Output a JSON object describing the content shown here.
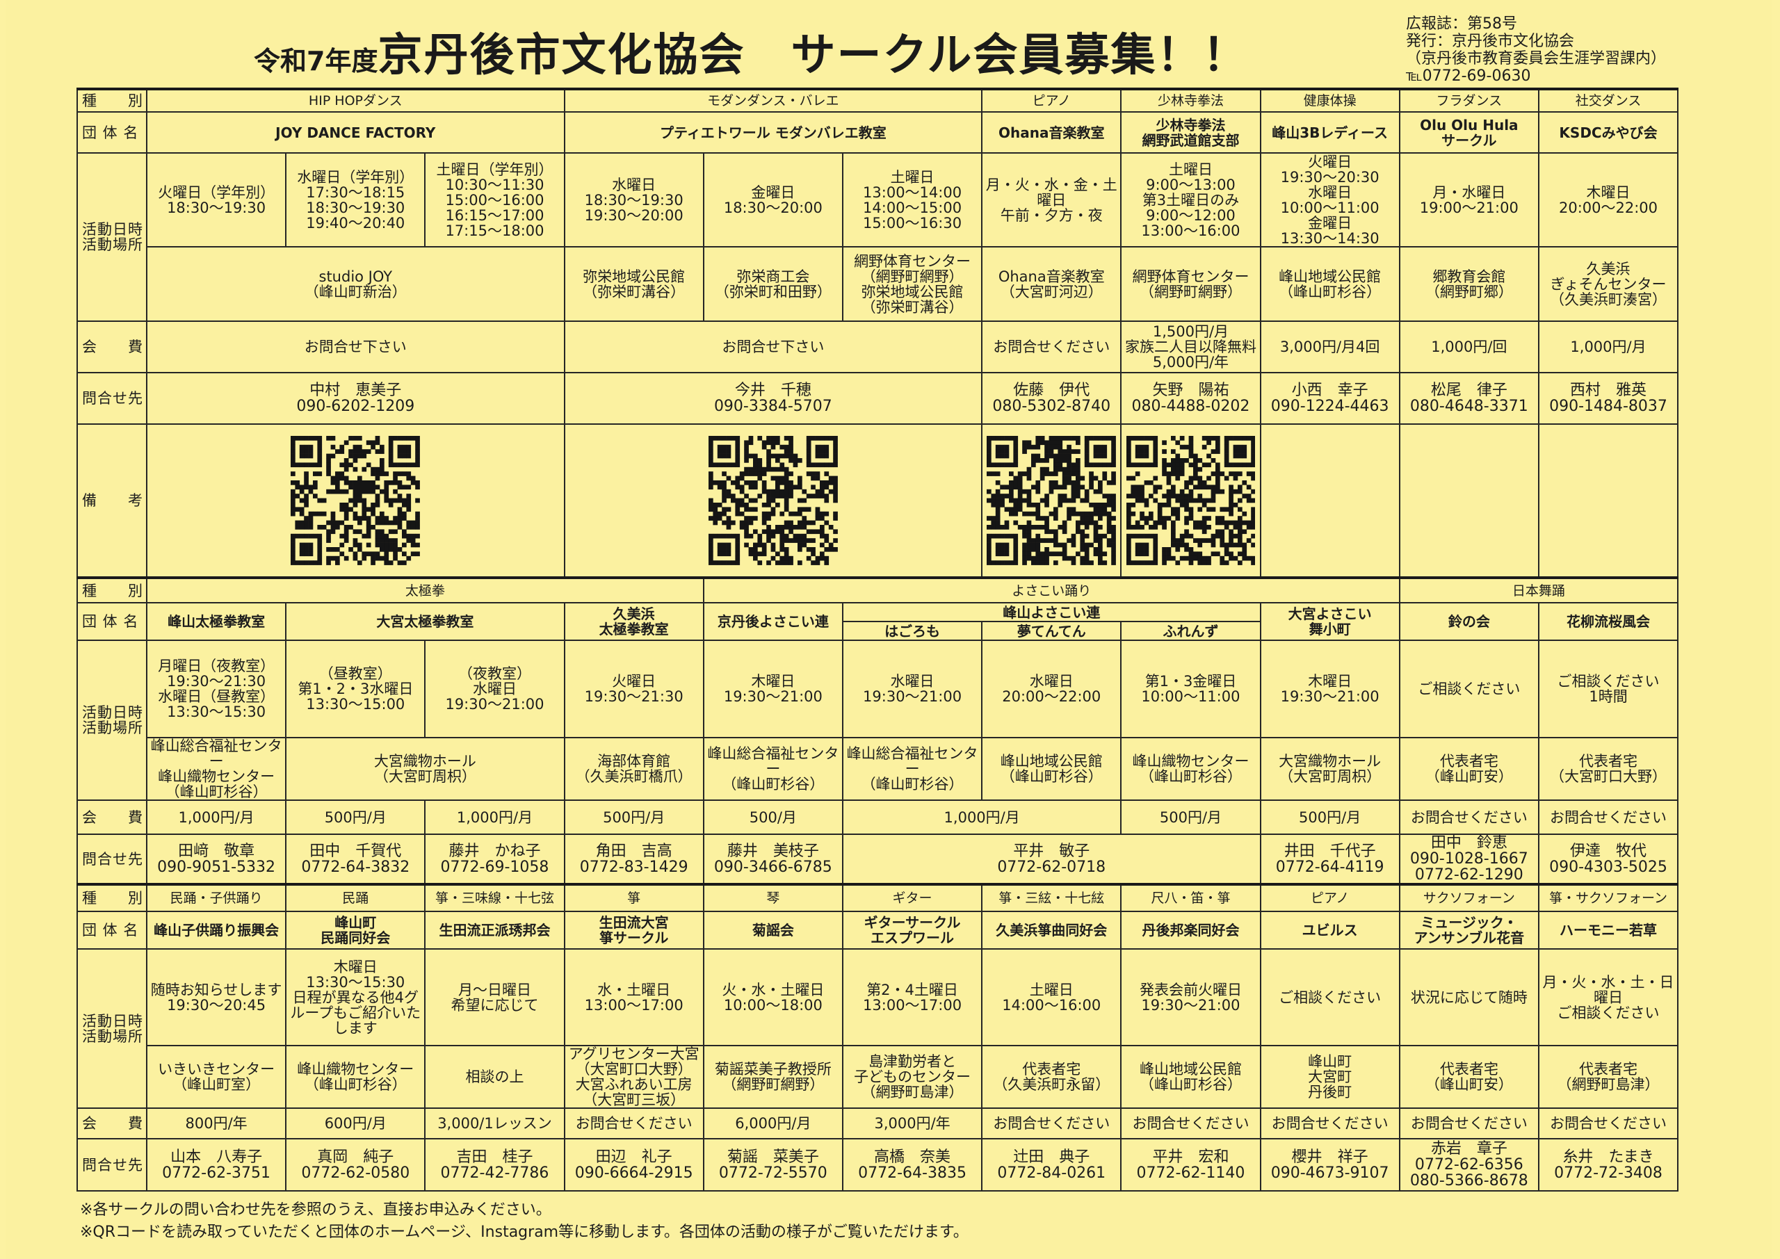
{
  "header": {
    "title_prefix": "令和7年度",
    "title_main": "京丹後市文化協会　サークル会員募集！！",
    "issue": "広報誌：第58号",
    "publisher": "発行：京丹後市文化協会",
    "office": "（京丹後市教育委員会生涯学習課内）",
    "tel": "℡0772-69-0630"
  },
  "labels": {
    "type": "種　　別",
    "name": "団 体 名",
    "time": "活動日時\n活動場所",
    "fee": "会　　費",
    "contact": "問合せ先",
    "notes": "備　　考"
  },
  "sections": [
    {
      "type": [
        "HIP HOPダンス",
        "モダンダンス・バレエ",
        "ピアノ",
        "少林寺拳法",
        "健康体操",
        "フラダンス",
        "社交ダンス"
      ],
      "name": [
        "JOY DANCE FACTORY",
        "プティエトワール モダンバレエ教室",
        "Ohana音楽教室",
        "少林寺拳法\n網野武道館支部",
        "峰山3Bレディース",
        "Olu Olu Hula\nサークル",
        "KSDCみやび会"
      ],
      "time": [
        "火曜日（学年別）\n18:30～19:30",
        "水曜日（学年別）\n17:30～18:15\n18:30～19:30\n19:40～20:40",
        "土曜日（学年別）\n10:30～11:30\n15:00～16:00\n16:15～17:00\n17:15～18:00",
        "水曜日\n18:30～19:30\n19:30～20:00",
        "金曜日\n18:30～20:00",
        "土曜日\n13:00～14:00\n14:00～15:00\n15:00～16:30",
        "月・火・水・金・土曜日\n午前・夕方・夜",
        "土曜日\n9:00～13:00\n第3土曜日のみ\n9:00～12:00\n13:00～16:00",
        "火曜日\n19:30～20:30\n水曜日\n10:00～11:00\n金曜日\n13:30～14:30",
        "月・水曜日\n19:00～21:00",
        "木曜日\n20:00～22:00"
      ],
      "place": [
        "studio JOY\n（峰山町新治）",
        "弥栄地域公民館\n（弥栄町溝谷）",
        "弥栄商工会\n（弥栄町和田野）",
        "網野体育センター\n（網野町網野）\n弥栄地域公民館\n（弥栄町溝谷）",
        "Ohana音楽教室\n（大宮町河辺）",
        "網野体育センター\n（網野町網野）",
        "峰山地域公民館\n（峰山町杉谷）",
        "郷教育会館\n（網野町郷）",
        "久美浜\nぎょそんセンター\n（久美浜町湊宮）"
      ],
      "fee": [
        "お問合せ下さい",
        "お問合せ下さい",
        "お問合せください",
        "1,500円/月\n家族二人目以降無料\n5,000円/年",
        "3,000円/月4回",
        "1,000円/回",
        "1,000円/月"
      ],
      "contact": [
        "中村　恵美子\n090-6202-1209",
        "今井　千穂\n090-3384-5707",
        "佐藤　伊代\n080-5302-8740",
        "矢野　陽祐\n080-4488-0202",
        "小西　幸子\n090-1224-4463",
        "松尾　律子\n080-4648-3371",
        "西村　雅英\n090-1484-8037"
      ],
      "notes": [
        "qr-code",
        "qr-code",
        "qr-code",
        "qr-code",
        "",
        "",
        ""
      ]
    },
    {
      "type": [
        "太極拳",
        "よさこい踊り",
        "日本舞踊"
      ],
      "name": [
        "峰山太極拳教室",
        "大宮太極拳教室",
        "久美浜\n太極拳教室",
        "京丹後よさこい連",
        "峰山よさこい連",
        "大宮よさこい\n舞小町",
        "鈴の会",
        "花柳流桜風会"
      ],
      "name_sub": [
        "はごろも",
        "夢てんてん",
        "ふれんず"
      ],
      "time": [
        "月曜日（夜教室）\n19:30～21:30\n水曜日（昼教室）\n13:30～15:30",
        "（昼教室）\n第1・2・3水曜日\n13:30～15:00",
        "（夜教室）\n水曜日\n19:30～21:00",
        "火曜日\n19:30～21:30",
        "木曜日\n19:30～21:00",
        "水曜日\n19:30～21:00",
        "水曜日\n20:00～22:00",
        "第1・3金曜日\n10:00～11:00",
        "木曜日\n19:30～21:00",
        "ご相談ください",
        "ご相談ください\n1時間"
      ],
      "place": [
        "峰山総合福祉センター\n峰山織物センター\n（峰山町杉谷）",
        "大宮織物ホール\n（大宮町周枳）",
        "海部体育館\n（久美浜町橋爪）",
        "峰山総合福祉センター\n（峰山町杉谷）",
        "峰山総合福祉センター\n（峰山町杉谷）",
        "峰山地域公民館\n（峰山町杉谷）",
        "峰山織物センター\n（峰山町杉谷）",
        "大宮織物ホール\n（大宮町周枳）",
        "代表者宅\n（峰山町安）",
        "代表者宅\n（大宮町口大野）"
      ],
      "fee": [
        "1,000円/月",
        "500円/月",
        "1,000円/月",
        "500円/月",
        "500/月",
        "1,000円/月",
        "500円/月",
        "500円/月",
        "お問合せください",
        "お問合せください"
      ],
      "contact": [
        "田﨑　敬章\n090-9051-5332",
        "田中　千賀代\n0772-64-3832",
        "藤井　かね子\n0772-69-1058",
        "角田　吉高\n0772-83-1429",
        "藤井　美枝子\n090-3466-6785",
        "平井　敏子\n0772-62-0718",
        "井田　千代子\n0772-64-4119",
        "田中　鈴恵\n090-1028-1667\n0772-62-1290",
        "伊達　牧代\n090-4303-5025"
      ]
    },
    {
      "type": [
        "民踊・子供踊り",
        "民踊",
        "箏・三味線・十七弦",
        "箏",
        "琴",
        "ギター",
        "箏・三絃・十七絃",
        "尺八・笛・箏",
        "ピアノ",
        "サクソフォーン",
        "箏・サクソフォーン"
      ],
      "name": [
        "峰山子供踊り振興会",
        "峰山町\n民踊同好会",
        "生田流正派琇邦会",
        "生田流大宮\n箏サークル",
        "菊謡会",
        "ギターサークル\nエスプワール",
        "久美浜箏曲同好会",
        "丹後邦楽同好会",
        "ユビルス",
        "ミュージック・\nアンサンブル花音",
        "ハーモニー若草"
      ],
      "time": [
        "随時お知らせします\n19:30～20:45",
        "木曜日\n13:30～15:30\n日程が異なる他4グループもご紹介いたします",
        "月～日曜日\n希望に応じて",
        "水・土曜日\n13:00～17:00",
        "火・水・土曜日\n10:00～18:00",
        "第2・4土曜日\n13:00～17:00",
        "土曜日\n14:00～16:00",
        "発表会前火曜日\n19:30～21:00",
        "ご相談ください",
        "状況に応じて随時",
        "月・火・水・土・日曜日\nご相談ください"
      ],
      "place": [
        "いきいきセンター\n（峰山町室）",
        "峰山織物センター\n（峰山町杉谷）",
        "相談の上",
        "アグリセンター大宮\n（大宮町口大野）\n大宮ふれあい工房\n（大宮町三坂）",
        "菊謡菜美子教授所\n（網野町網野）",
        "島津勤労者と\n子どものセンター\n（網野町島津）",
        "代表者宅\n（久美浜町永留）",
        "峰山地域公民館\n（峰山町杉谷）",
        "峰山町\n大宮町\n丹後町",
        "代表者宅\n（峰山町安）",
        "代表者宅\n（網野町島津）"
      ],
      "fee": [
        "800円/年",
        "600円/月",
        "3,000/1レッスン",
        "お問合せください",
        "6,000円/月",
        "3,000円/年",
        "お問合せください",
        "お問合せください",
        "お問合せください",
        "お問合せください",
        "お問合せください"
      ],
      "contact": [
        "山本　八寿子\n0772-62-3751",
        "真岡　純子\n0772-62-0580",
        "吉田　桂子\n0772-42-7786",
        "田辺　礼子\n090-6664-2915",
        "菊謡　菜美子\n0772-72-5570",
        "高橋　奈美\n0772-64-3835",
        "辻田　典子\n0772-84-0261",
        "平井　宏和\n0772-62-1140",
        "櫻井　祥子\n090-4673-9107",
        "赤岩　章子\n0772-62-6356\n080-5366-8678",
        "糸井　たまき\n0772-72-3408"
      ]
    }
  ],
  "footer": [
    "※各サークルの問い合わせ先を参照のうえ、直接お申込みください。",
    "※QRコードを読み取っていただくと団体のホームページ、Instagram等に移動します。各団体の活動の様子がご覧いただけます。"
  ],
  "colors": {
    "paper": "#fbf1a0",
    "ink": "#1d1d1d"
  }
}
